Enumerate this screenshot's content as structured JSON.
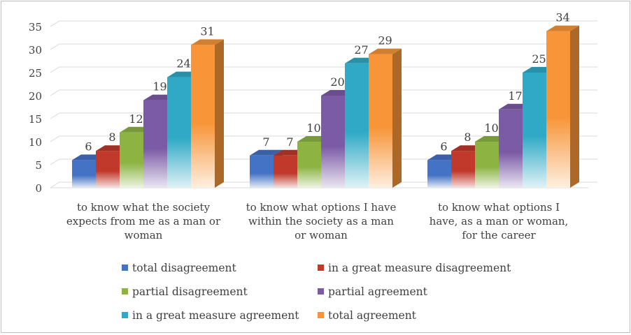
{
  "chart_data": {
    "type": "bar",
    "style": "3d-clustered-column",
    "categories": [
      [
        "to know what the society",
        "expects from me as a man or",
        "woman"
      ],
      [
        "to know what options I have",
        "within the society as a man",
        "or woman"
      ],
      [
        "to know what options I",
        "have, as a man or woman,",
        "for the career"
      ]
    ],
    "series": [
      {
        "name": "total disagreement",
        "values": [
          6,
          7,
          6
        ],
        "color": "#4472c4"
      },
      {
        "name": "in a great measure disagreement",
        "values": [
          8,
          7,
          8
        ],
        "color": "#c0392b"
      },
      {
        "name": "partial disagreement",
        "values": [
          12,
          10,
          10
        ],
        "color": "#8db443"
      },
      {
        "name": "partial agreement",
        "values": [
          19,
          20,
          17
        ],
        "color": "#7b5aa6"
      },
      {
        "name": "in a great measure agreement",
        "values": [
          24,
          27,
          25
        ],
        "color": "#2fa9c6"
      },
      {
        "name": "total agreement",
        "values": [
          31,
          29,
          34
        ],
        "color": "#f79538"
      }
    ],
    "yticks": [
      0,
      5,
      10,
      15,
      20,
      25,
      30,
      35
    ],
    "ylim": [
      0,
      35
    ],
    "grid": true,
    "data_labels": true,
    "legend_position": "bottom"
  }
}
